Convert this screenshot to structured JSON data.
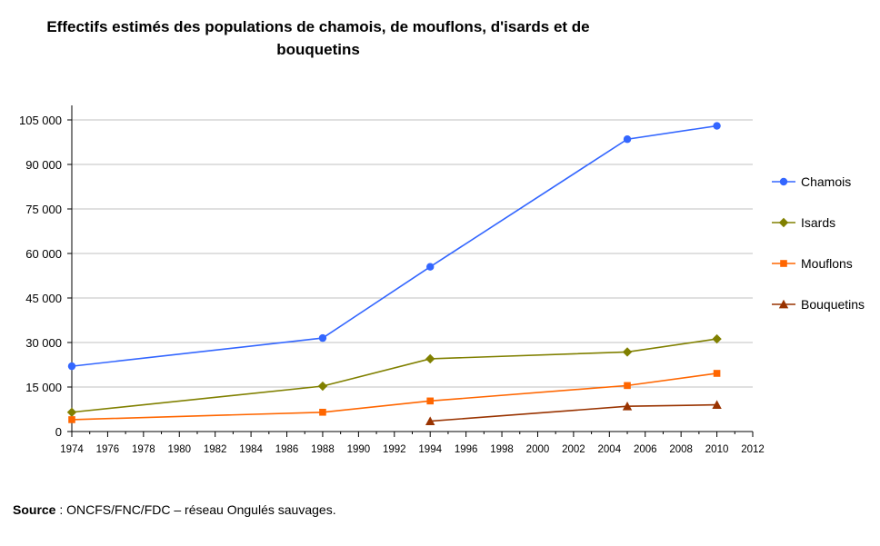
{
  "chart_data": {
    "type": "line",
    "title_lines": [
      "Effectifs estimés des populations de chamois, de mouflons, d'isards et de",
      "bouquetins"
    ],
    "xlabel": "",
    "ylabel": "",
    "xlim": [
      1974,
      2012
    ],
    "ylim": [
      0,
      105000
    ],
    "x_ticks": [
      "1974",
      "1976",
      "1978",
      "1980",
      "1982",
      "1984",
      "1986",
      "1988",
      "1990",
      "1992",
      "1994",
      "1996",
      "1998",
      "2000",
      "2002",
      "2004",
      "2006",
      "2008",
      "2010",
      "2012"
    ],
    "y_ticks": [
      "0",
      "15 000",
      "30 000",
      "45 000",
      "60 000",
      "75 000",
      "90 000",
      "105 000"
    ],
    "grid": "horizontal",
    "legend_position": "right",
    "series": [
      {
        "name": "Chamois",
        "color": "#3366ff",
        "marker": "circle",
        "x": [
          1974,
          1988,
          1994,
          2005,
          2010
        ],
        "values": [
          22000,
          31500,
          55500,
          98500,
          103000
        ]
      },
      {
        "name": "Isards",
        "color": "#808000",
        "marker": "diamond",
        "x": [
          1974,
          1988,
          1994,
          2005,
          2010
        ],
        "values": [
          6500,
          15300,
          24500,
          26800,
          31200
        ]
      },
      {
        "name": "Mouflons",
        "color": "#ff6600",
        "marker": "square",
        "x": [
          1974,
          1988,
          1994,
          2005,
          2010
        ],
        "values": [
          4000,
          6500,
          10300,
          15500,
          19600
        ]
      },
      {
        "name": "Bouquetins",
        "color": "#993300",
        "marker": "triangle",
        "x": [
          1994,
          2005,
          2010
        ],
        "values": [
          3500,
          8500,
          9000
        ]
      }
    ]
  },
  "source": {
    "label": "Source",
    "text": " : ONCFS/FNC/FDC – réseau Ongulés sauvages."
  }
}
